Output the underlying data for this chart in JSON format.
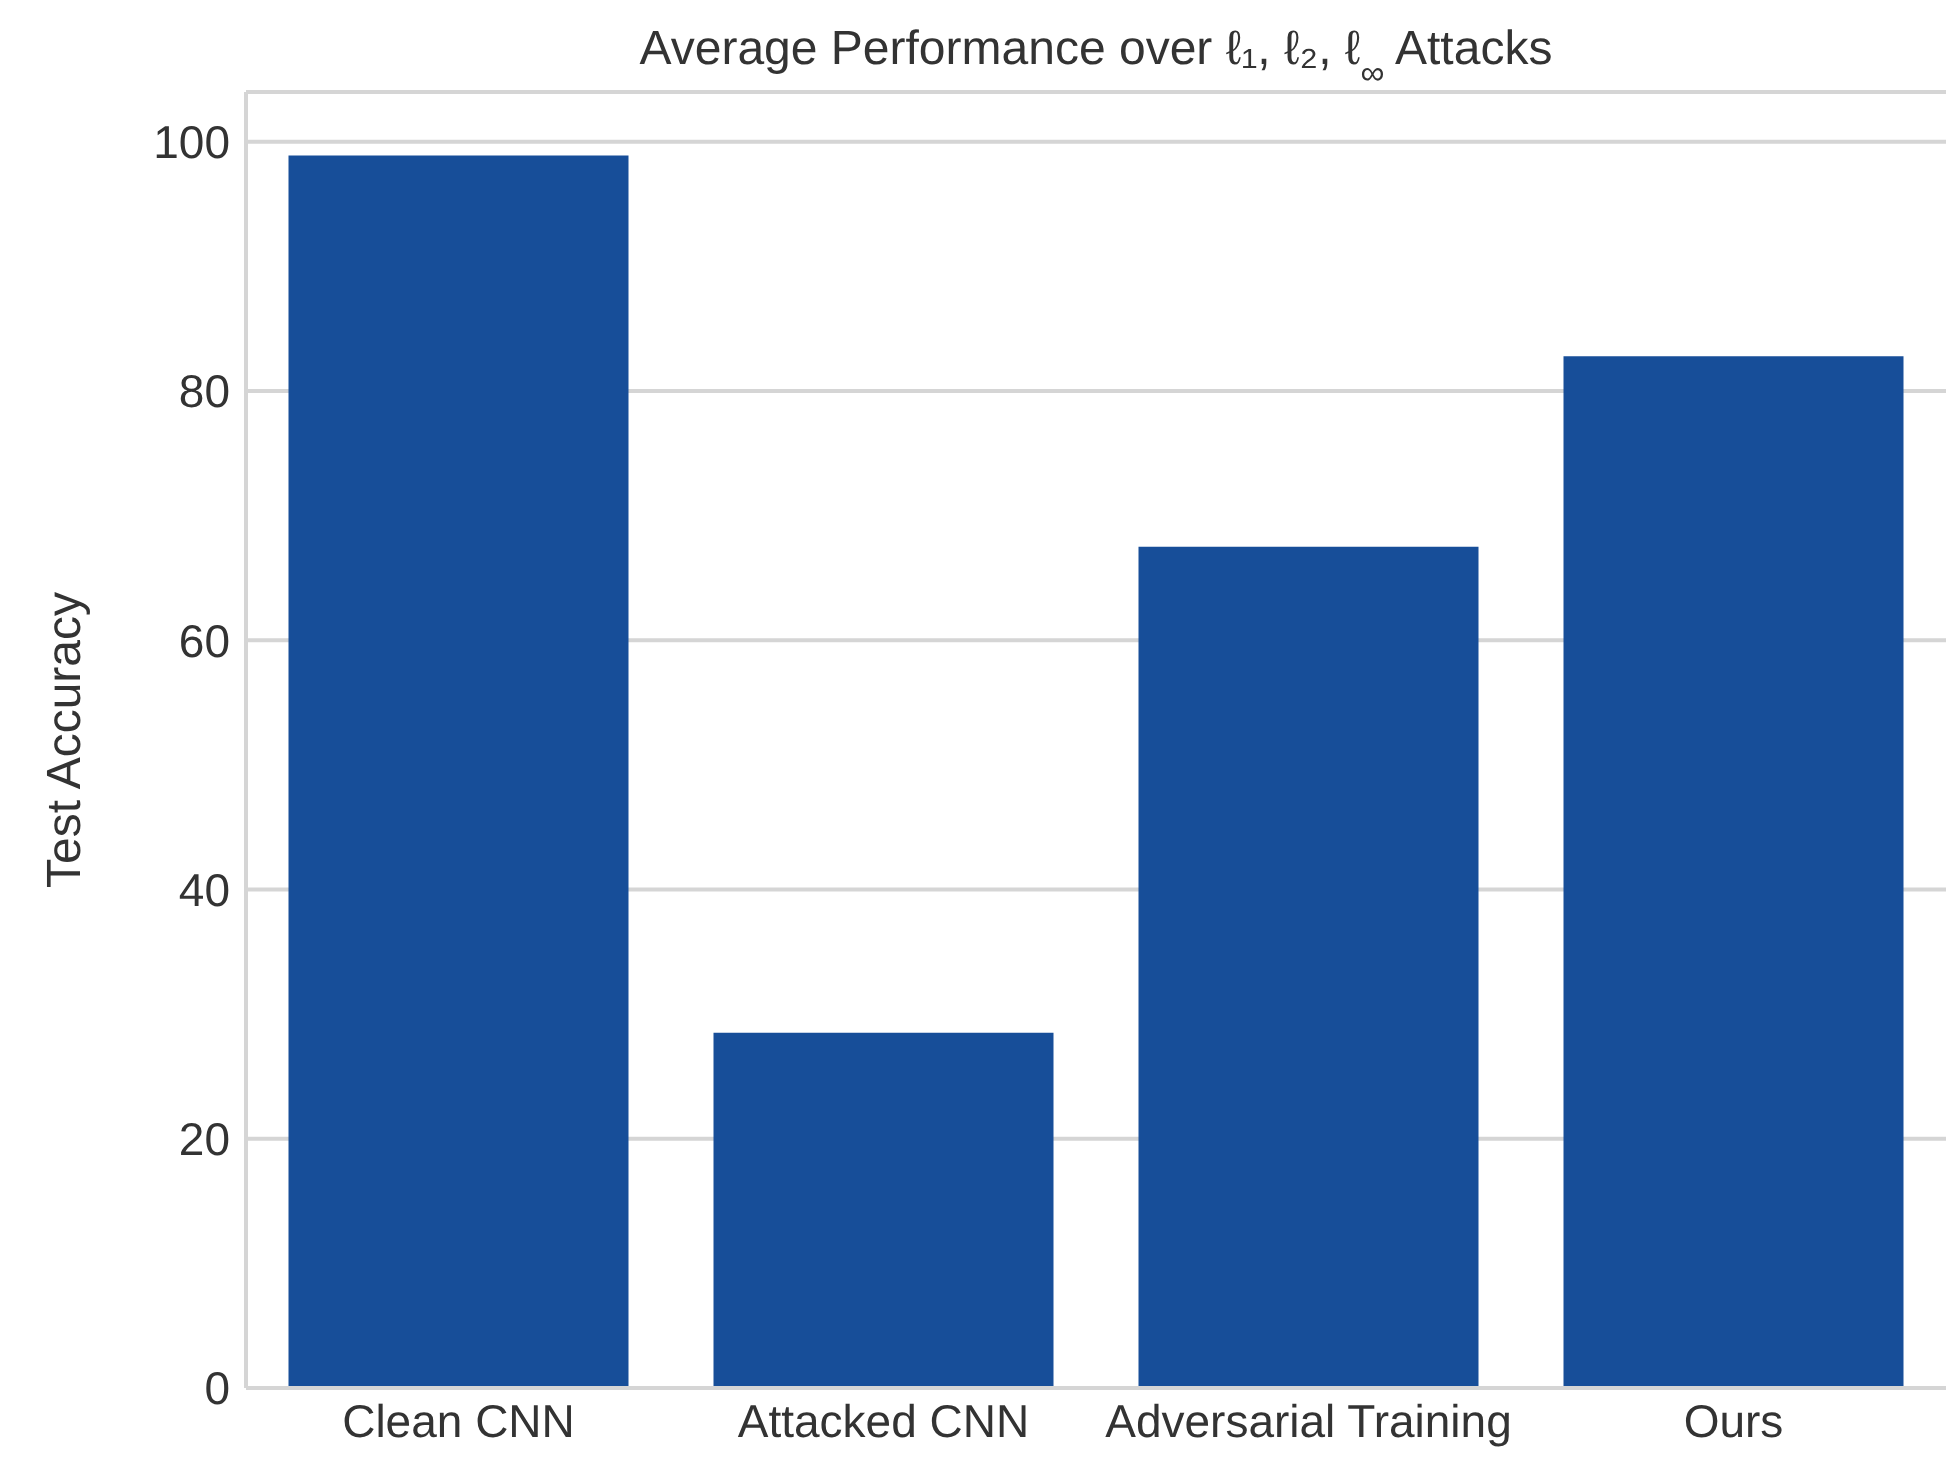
{
  "chart_data": {
    "type": "bar",
    "title": "Average Performance over ℓ₁, ℓ₂, ℓ$_{∞}$ Attacks",
    "ylabel": "Test Accuracy",
    "categories": [
      "Clean CNN",
      "Attacked CNN",
      "Adversarial Training",
      "Ours"
    ],
    "values": [
      98.9,
      28.5,
      67.5,
      82.8
    ],
    "color": "#174e99",
    "ylim": [
      0,
      104
    ],
    "yticks": [
      0,
      20,
      40,
      60,
      80,
      100
    ],
    "grid": "y"
  }
}
